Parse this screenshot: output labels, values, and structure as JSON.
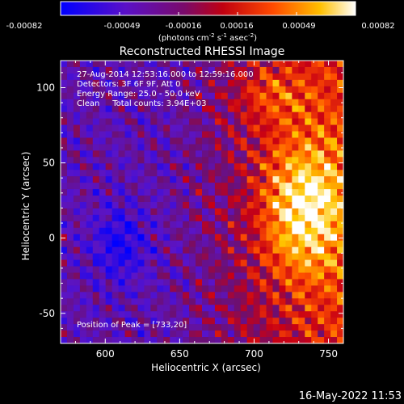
{
  "chart_data": {
    "type": "heatmap",
    "title": "Reconstructed RHESSI Image",
    "xlabel": "Heliocentric X (arcsec)",
    "ylabel": "Heliocentric Y (arcsec)",
    "xlim": [
      570,
      760
    ],
    "ylim": [
      -70,
      118
    ],
    "x_ticks": [
      "600",
      "650",
      "700",
      "750"
    ],
    "y_ticks": [
      "-50",
      "0",
      "50",
      "100"
    ],
    "colorbar": {
      "ticks": [
        "-0.00082",
        "-0.00049",
        "-0.00016",
        "0.00016",
        "0.00049",
        "0.00082"
      ],
      "label_main": "(photons cm",
      "label_exp1": "-2",
      "label_mid": " s",
      "label_exp2": "-1",
      "label_end": " asec",
      "label_exp3": "-2",
      "label_close": ")"
    },
    "annotations": [
      "27-Aug-2014 12:53:16.000 to 12:59:16.000",
      "Detectors: 3F 6F 9F, Att 0",
      "Energy Range: 25.0 - 50.0 keV",
      "Clean     Total counts: 3.94E+03"
    ],
    "peak_label": "Position of Peak = [733,20]",
    "peak": [
      733,
      20
    ],
    "colormap": [
      "#0000ff",
      "#7a0aa8",
      "#c00018",
      "#ff5500",
      "#ffd000",
      "#ffffff"
    ]
  },
  "footer": {
    "timestamp": "16-May-2022 11:53"
  }
}
